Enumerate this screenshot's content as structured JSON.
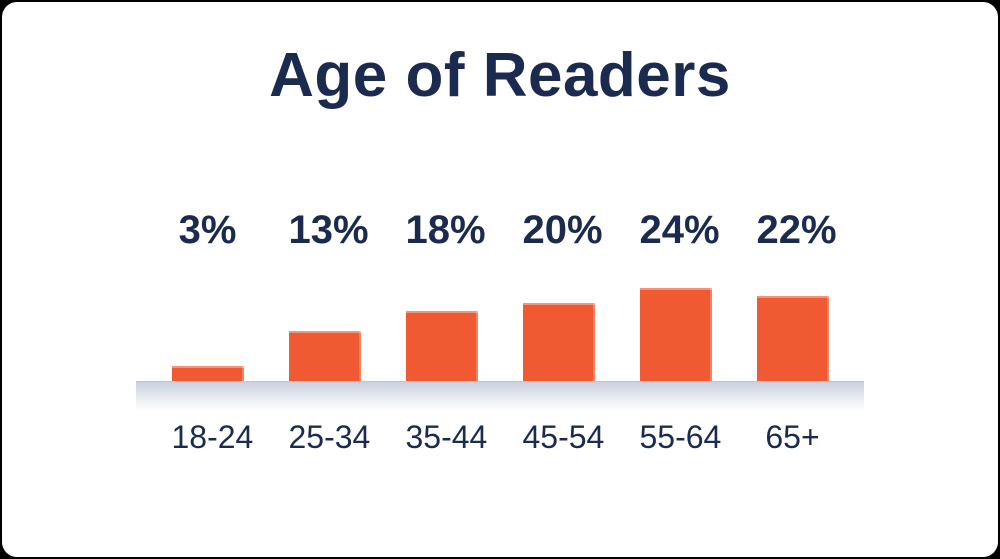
{
  "theme": {
    "background": "#000000",
    "card": "#FFFFFF",
    "navy": "#1B2B4F",
    "orange": "#F05A32",
    "platform_top": "#C9CFDF"
  },
  "chart_data": {
    "type": "bar",
    "title": "Age of Readers",
    "categories": [
      "18-24",
      "25-34",
      "35-44",
      "45-54",
      "55-64",
      "65+"
    ],
    "values": [
      3,
      13,
      18,
      20,
      24,
      22
    ],
    "value_labels": [
      "3%",
      "13%",
      "18%",
      "20%",
      "24%",
      "22%"
    ],
    "unit": "%",
    "bar_color": "#F05A32",
    "text_color": "#1B2B4F",
    "legend": "none",
    "grid": false,
    "axis_lines": "none",
    "value_label_position": "above-aligned-row",
    "ylim": [
      0,
      25
    ]
  }
}
